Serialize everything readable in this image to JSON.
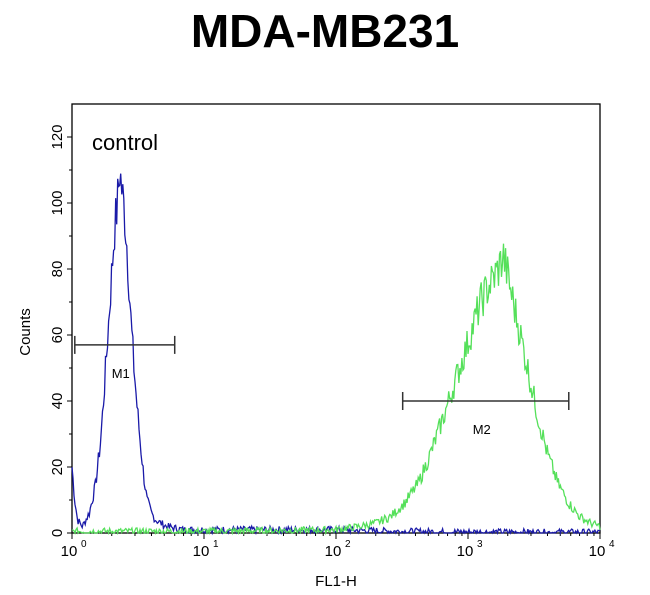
{
  "chart_data": {
    "type": "line",
    "title": "MDA-MB231",
    "xlabel": "FL1-H",
    "ylabel": "Counts",
    "x_scale": "log",
    "xlim": [
      1,
      10000
    ],
    "ylim": [
      0,
      130
    ],
    "x_ticks": [
      {
        "base": "10",
        "exp": "0"
      },
      {
        "base": "10",
        "exp": "1"
      },
      {
        "base": "10",
        "exp": "2"
      },
      {
        "base": "10",
        "exp": "3"
      },
      {
        "base": "10",
        "exp": "4"
      }
    ],
    "y_ticks": [
      "0",
      "20",
      "40",
      "60",
      "80",
      "100",
      "120"
    ],
    "annotation": "control",
    "gates": [
      {
        "label": "M1",
        "x_start": 1.05,
        "x_end": 6.0,
        "y": 57
      },
      {
        "label": "M2",
        "x_start": 320,
        "x_end": 5800,
        "y": 40
      }
    ],
    "series": [
      {
        "color": "#1a1aa8",
        "x": [
          1.0,
          1.05,
          1.1,
          1.2,
          1.35,
          1.5,
          1.65,
          1.8,
          1.95,
          2.1,
          2.2,
          2.3,
          2.4,
          2.5,
          2.6,
          2.7,
          2.8,
          2.95,
          3.1,
          3.3,
          3.5,
          3.7,
          4.0,
          4.3,
          4.7,
          5.2,
          6.0,
          7.0,
          8.5,
          10,
          20,
          50,
          100,
          300,
          1000,
          10000
        ],
        "y": [
          20,
          10,
          4,
          2,
          6,
          14,
          28,
          50,
          72,
          92,
          99,
          110,
          103,
          97,
          88,
          76,
          64,
          50,
          39,
          27,
          17,
          10,
          6,
          4,
          3,
          2,
          1.5,
          1,
          1,
          1,
          1,
          1,
          1,
          0.5,
          0.3,
          0.2
        ]
      },
      {
        "color": "#55e05a",
        "x": [
          1.0,
          10,
          50,
          100,
          150,
          200,
          260,
          330,
          420,
          520,
          650,
          800,
          950,
          1100,
          1250,
          1400,
          1550,
          1700,
          1850,
          2000,
          2200,
          2500,
          2900,
          3400,
          4000,
          4800,
          5800,
          7000,
          8500,
          10000
        ],
        "y": [
          0.5,
          0.5,
          0.8,
          1,
          2,
          3,
          5,
          9,
          15,
          24,
          35,
          46,
          55,
          63,
          70,
          74,
          77,
          80,
          84,
          78,
          70,
          60,
          48,
          35,
          24,
          15,
          9,
          5,
          3,
          2
        ]
      }
    ]
  }
}
